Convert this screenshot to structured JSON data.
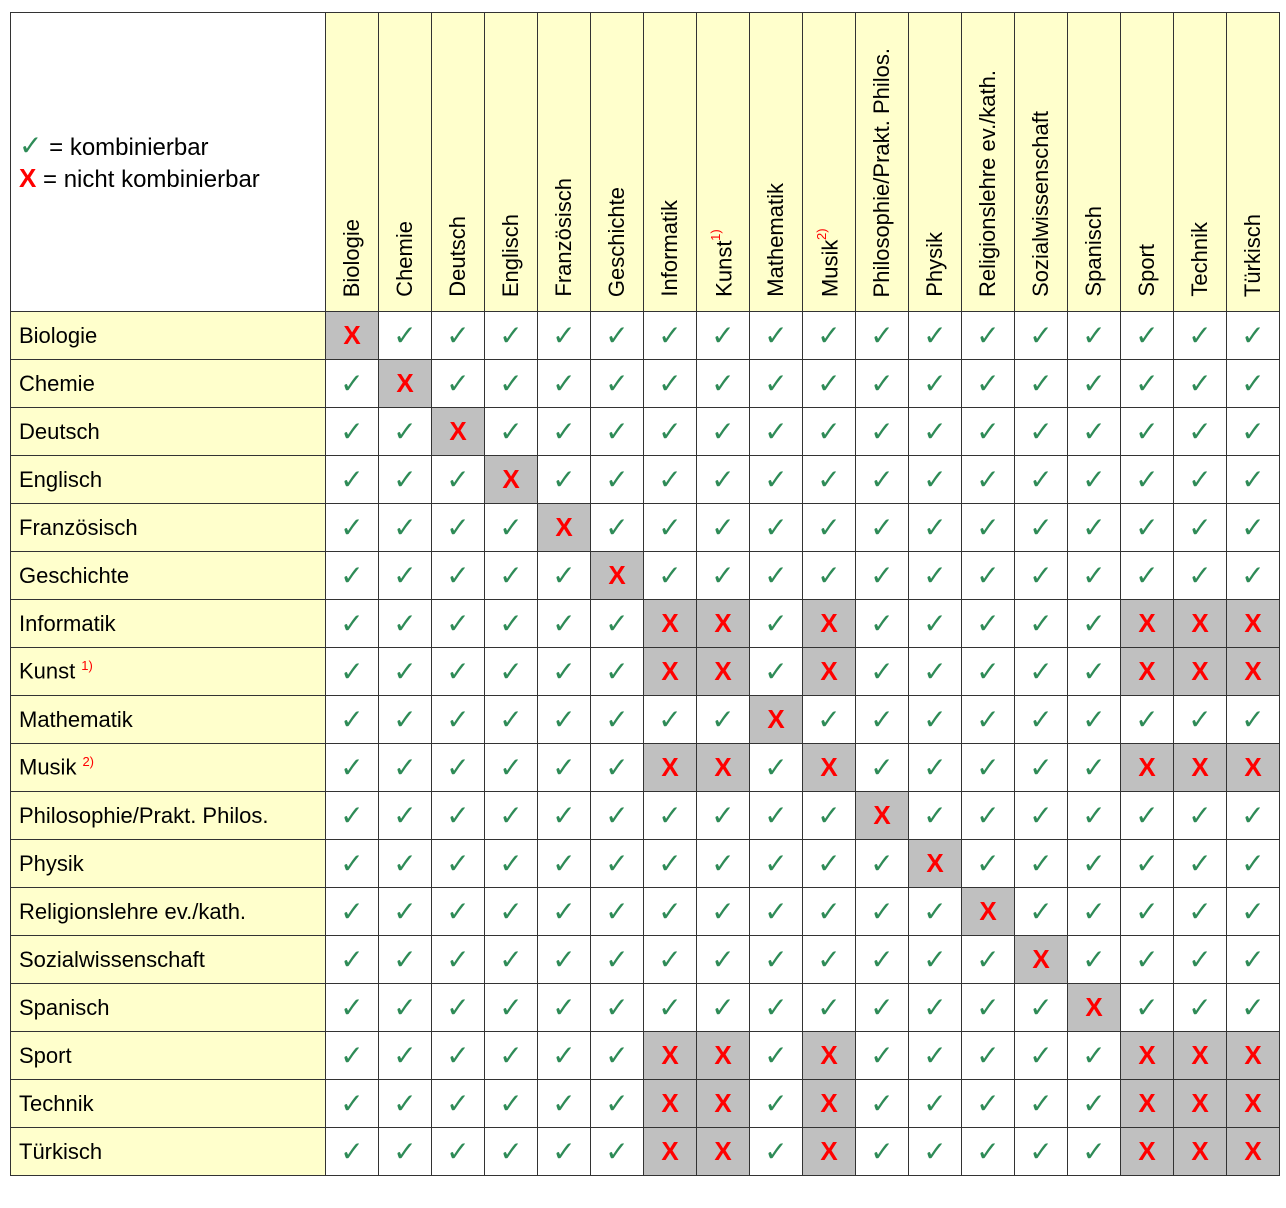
{
  "legend": {
    "yes_symbol": "✓",
    "yes_label": "= kombinierbar",
    "no_symbol": "X",
    "no_label": "= nicht kombinierbar"
  },
  "subjects": [
    {
      "name": "Biologie"
    },
    {
      "name": "Chemie"
    },
    {
      "name": "Deutsch"
    },
    {
      "name": "Englisch"
    },
    {
      "name": "Französisch"
    },
    {
      "name": "Geschichte"
    },
    {
      "name": "Informatik"
    },
    {
      "name": "Kunst",
      "note": "1)"
    },
    {
      "name": "Mathematik"
    },
    {
      "name": "Musik",
      "note": "2)"
    },
    {
      "name": "Philosophie/Prakt. Philos."
    },
    {
      "name": "Physik"
    },
    {
      "name": "Religionslehre ev./kath."
    },
    {
      "name": "Sozialwissenschaft"
    },
    {
      "name": "Spanisch"
    },
    {
      "name": "Sport"
    },
    {
      "name": "Technik"
    },
    {
      "name": "Türkisch"
    }
  ],
  "non_combinable_group": [
    "Informatik",
    "Kunst",
    "Musik",
    "Sport",
    "Technik",
    "Türkisch"
  ],
  "matrix": [
    "X-----------------",
    "-X----------------",
    "--X---------------",
    "---X--------------",
    "----X-------------",
    "-----X------------",
    "------XX-X-----XXX",
    "------XX-X-----XXX",
    "--------X---------",
    "------XX-X-----XXX",
    "----------X-------",
    "-----------X------",
    "------------X-----",
    "-------------X----",
    "--------------X---",
    "------XX-X-----XXX",
    "------XX-X-----XXX",
    "------XX-X-----XXX"
  ],
  "colors": {
    "header": "#ffffcc",
    "blocked": "#c0c0c0",
    "check": "#2e8b57",
    "cross": "#ff0000"
  }
}
